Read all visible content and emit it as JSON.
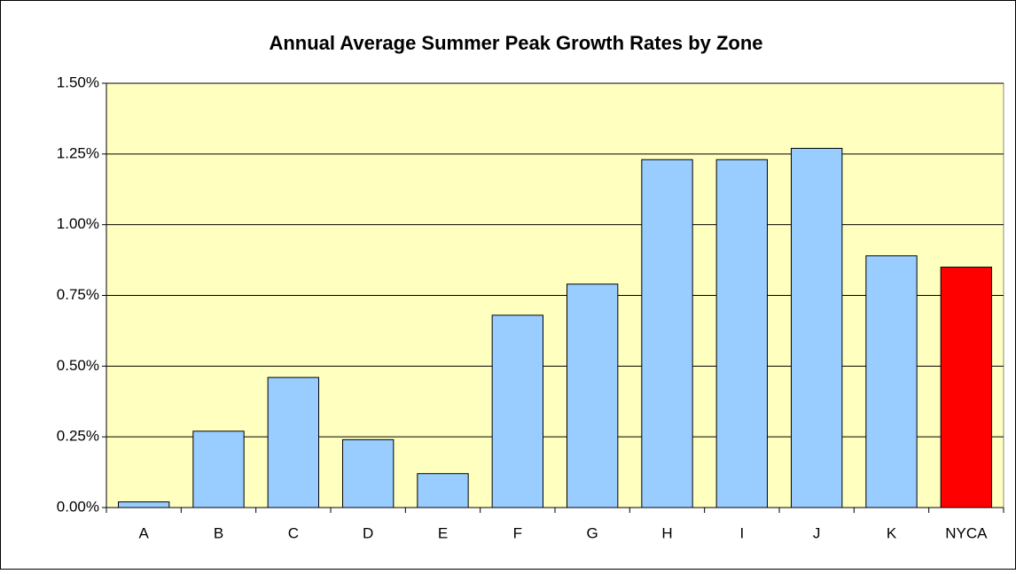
{
  "chart_data": {
    "type": "bar",
    "title": "Annual Average Summer Peak Growth Rates by Zone",
    "categories": [
      "A",
      "B",
      "C",
      "D",
      "E",
      "F",
      "G",
      "H",
      "I",
      "J",
      "K",
      "NYCA"
    ],
    "values": [
      0.02,
      0.27,
      0.46,
      0.24,
      0.12,
      0.68,
      0.79,
      1.23,
      1.23,
      1.27,
      0.89,
      0.85
    ],
    "colors": [
      "#99ccff",
      "#99ccff",
      "#99ccff",
      "#99ccff",
      "#99ccff",
      "#99ccff",
      "#99ccff",
      "#99ccff",
      "#99ccff",
      "#99ccff",
      "#99ccff",
      "#ff0000"
    ],
    "ylim": [
      0,
      1.5
    ],
    "yticks": [
      {
        "value": 0,
        "label": "0.00%"
      },
      {
        "value": 0.25,
        "label": "0.25%"
      },
      {
        "value": 0.5,
        "label": "0.50%"
      },
      {
        "value": 0.75,
        "label": "0.75%"
      },
      {
        "value": 1,
        "label": "1.00%"
      },
      {
        "value": 1.25,
        "label": "1.25%"
      },
      {
        "value": 1.5,
        "label": "1.50%"
      }
    ],
    "grid": true,
    "plot_background": "#ffffc0"
  }
}
